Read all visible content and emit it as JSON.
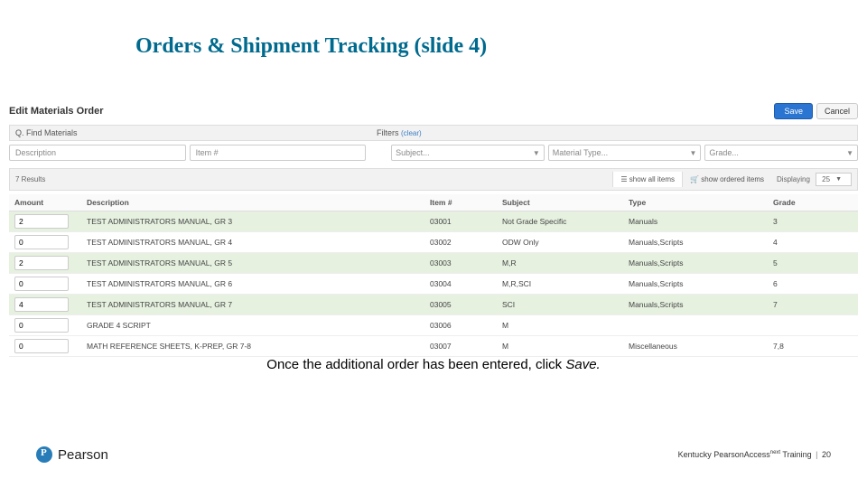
{
  "title": "Orders & Shipment Tracking (slide 4)",
  "panel": {
    "heading": "Edit Materials Order",
    "save_label": "Save",
    "cancel_label": "Cancel",
    "find_label": "Q. Find Materials",
    "filters_label": "Filters",
    "filters_clear": "(clear)",
    "desc_placeholder": "Description",
    "item_placeholder": "Item #",
    "subject_placeholder": "Subject...",
    "material_placeholder": "Material Type...",
    "grade_placeholder": "Grade...",
    "results_count": "7 Results",
    "show_all_label": "show all items",
    "show_ordered_label": "show ordered items",
    "displaying_label": "Displaying",
    "displaying_value": "25"
  },
  "columns": {
    "amount": "Amount",
    "description": "Description",
    "item": "Item #",
    "subject": "Subject",
    "type": "Type",
    "grade": "Grade"
  },
  "rows": [
    {
      "hl": true,
      "amount": "2",
      "description": "TEST ADMINISTRATORS MANUAL, GR 3",
      "item": "03001",
      "subject": "Not Grade Specific",
      "type": "Manuals",
      "grade": "3"
    },
    {
      "hl": false,
      "amount": "0",
      "description": "TEST ADMINISTRATORS MANUAL, GR 4",
      "item": "03002",
      "subject": "ODW Only",
      "type": "Manuals,Scripts",
      "grade": "4"
    },
    {
      "hl": true,
      "amount": "2",
      "description": "TEST ADMINISTRATORS MANUAL, GR 5",
      "item": "03003",
      "subject": "M,R",
      "type": "Manuals,Scripts",
      "grade": "5"
    },
    {
      "hl": false,
      "amount": "0",
      "description": "TEST ADMINISTRATORS MANUAL, GR 6",
      "item": "03004",
      "subject": "M,R,SCI",
      "type": "Manuals,Scripts",
      "grade": "6"
    },
    {
      "hl": true,
      "amount": "4",
      "description": "TEST ADMINISTRATORS MANUAL, GR 7",
      "item": "03005",
      "subject": "SCI",
      "type": "Manuals,Scripts",
      "grade": "7"
    },
    {
      "hl": false,
      "amount": "0",
      "description": "GRADE 4 SCRIPT",
      "item": "03006",
      "subject": "M",
      "type": "",
      "grade": ""
    },
    {
      "hl": false,
      "amount": "0",
      "description": "MATH REFERENCE SHEETS, K-PREP, GR 7-8",
      "item": "03007",
      "subject": "M",
      "type": "Miscellaneous",
      "grade": "7,8"
    }
  ],
  "caption_prefix": "Once the additional order has been entered, click ",
  "caption_action": "Save.",
  "logo_text": "Pearson",
  "footer": {
    "text_a": "Kentucky PearsonAccess",
    "sup": "next",
    "text_b": " Training",
    "page": "20"
  },
  "colors": {
    "title": "#006a8e",
    "save_btn": "#2a75d1",
    "row_highlight": "#e6f1e0",
    "logo": "#287db8"
  }
}
